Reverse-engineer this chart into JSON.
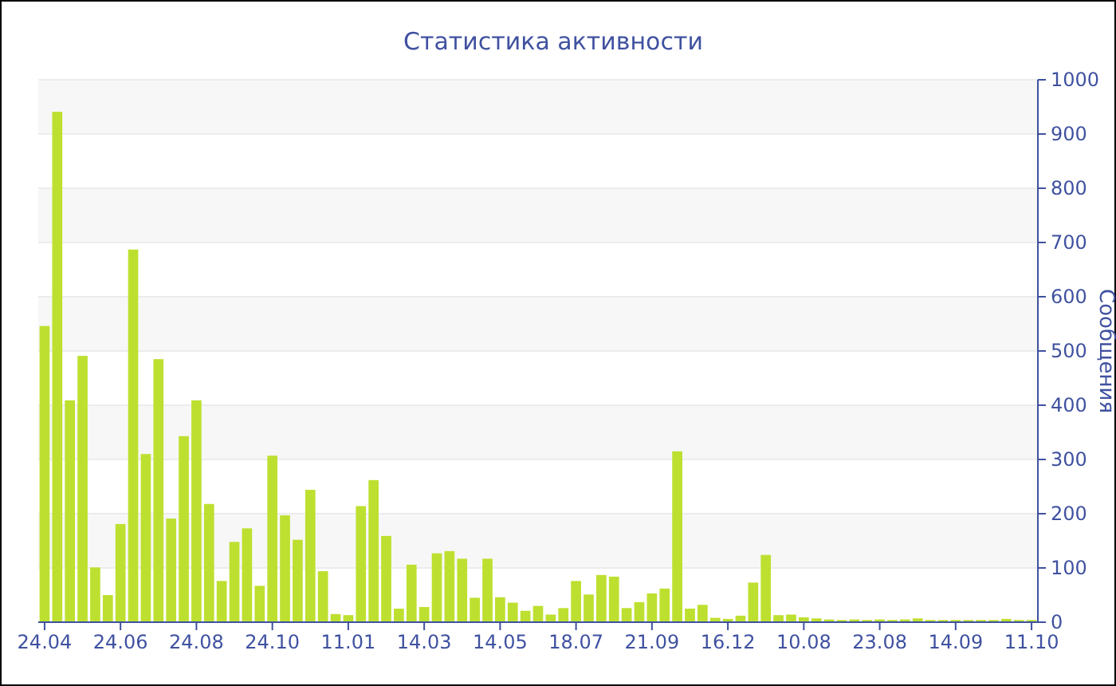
{
  "chart_data": {
    "type": "bar",
    "title": "Статистика активности",
    "ylabel": "Сообщения",
    "categories": [
      "24.04",
      null,
      null,
      null,
      null,
      null,
      "24.06",
      null,
      null,
      null,
      null,
      null,
      "24.08",
      null,
      null,
      null,
      null,
      null,
      "24.10",
      null,
      null,
      null,
      null,
      null,
      "11.01",
      null,
      null,
      null,
      null,
      null,
      "14.03",
      null,
      null,
      null,
      null,
      null,
      "14.05",
      null,
      null,
      null,
      null,
      null,
      "18.07",
      null,
      null,
      null,
      null,
      null,
      "21.09",
      null,
      null,
      null,
      null,
      null,
      "16.12",
      null,
      null,
      null,
      null,
      null,
      "10.08",
      null,
      null,
      null,
      null,
      null,
      "23.08",
      null,
      null,
      null,
      null,
      null,
      "14.09",
      null,
      null,
      null,
      null,
      null,
      "11.10"
    ],
    "values": [
      546,
      941,
      409,
      491,
      101,
      50,
      181,
      687,
      310,
      485,
      191,
      343,
      409,
      218,
      76,
      148,
      173,
      67,
      307,
      197,
      152,
      244,
      94,
      15,
      13,
      214,
      262,
      159,
      25,
      106,
      28,
      127,
      131,
      117,
      45,
      117,
      46,
      36,
      21,
      30,
      14,
      26,
      76,
      51,
      87,
      84,
      26,
      37,
      53,
      62,
      315,
      25,
      32,
      8,
      6,
      12,
      73,
      124,
      13,
      14,
      9,
      7,
      5,
      4,
      5,
      4,
      5,
      4,
      5,
      7,
      4,
      4,
      4,
      4,
      4,
      4,
      6,
      4,
      4
    ],
    "color": "#bde030",
    "ylim": [
      0,
      1000
    ],
    "yticks": [
      0,
      100,
      200,
      300,
      400,
      500,
      600,
      700,
      800,
      900,
      1000
    ],
    "grid": "y"
  }
}
